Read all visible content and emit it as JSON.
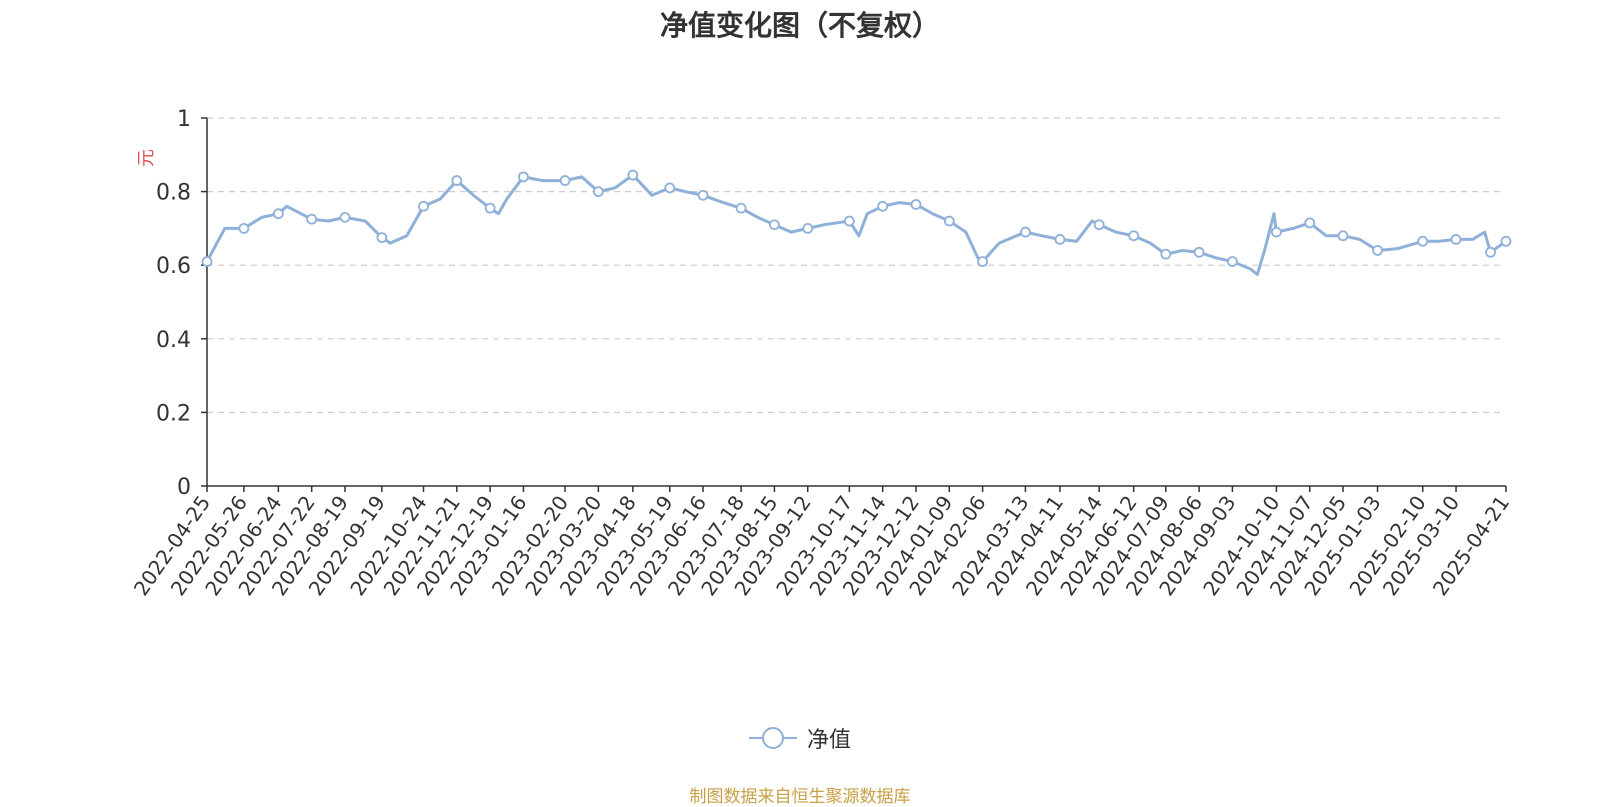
{
  "chart_data": {
    "type": "line",
    "title": "净值变化图（不复权）",
    "ylabel": "元",
    "xlabel": "",
    "ylim": [
      0,
      1
    ],
    "yticks": [
      "0",
      "0.2",
      "0.4",
      "0.6",
      "0.8",
      "1"
    ],
    "grid": true,
    "legend_position": "bottom",
    "x_ticks": [
      "2022-04-25",
      "2022-05-26",
      "2022-06-24",
      "2022-07-22",
      "2022-08-19",
      "2022-09-19",
      "2022-10-24",
      "2022-11-21",
      "2022-12-19",
      "2023-01-16",
      "2023-02-20",
      "2023-03-20",
      "2023-04-18",
      "2023-05-19",
      "2023-06-16",
      "2023-07-18",
      "2023-08-15",
      "2023-09-12",
      "2023-10-17",
      "2023-11-14",
      "2023-12-12",
      "2024-01-09",
      "2024-02-06",
      "2024-03-13",
      "2024-04-11",
      "2024-05-14",
      "2024-06-12",
      "2024-07-09",
      "2024-08-06",
      "2024-09-03",
      "2024-10-10",
      "2024-11-07",
      "2024-12-05",
      "2025-01-03",
      "2025-02-10",
      "2025-03-10",
      "2025-04-21"
    ],
    "series": [
      {
        "name": "净值",
        "color": "#8fb0d9",
        "x": [
          "2022-04-25",
          "2022-05-10",
          "2022-05-26",
          "2022-06-10",
          "2022-06-24",
          "2022-07-01",
          "2022-07-22",
          "2022-08-05",
          "2022-08-19",
          "2022-09-05",
          "2022-09-19",
          "2022-09-26",
          "2022-10-10",
          "2022-10-24",
          "2022-11-07",
          "2022-11-21",
          "2022-12-05",
          "2022-12-19",
          "2022-12-26",
          "2023-01-02",
          "2023-01-16",
          "2023-02-01",
          "2023-02-20",
          "2023-03-06",
          "2023-03-20",
          "2023-04-03",
          "2023-04-18",
          "2023-05-04",
          "2023-05-19",
          "2023-06-01",
          "2023-06-16",
          "2023-07-03",
          "2023-07-18",
          "2023-08-01",
          "2023-08-15",
          "2023-08-29",
          "2023-09-12",
          "2023-09-26",
          "2023-10-17",
          "2023-10-25",
          "2023-11-01",
          "2023-11-14",
          "2023-11-28",
          "2023-12-12",
          "2023-12-26",
          "2024-01-09",
          "2024-01-23",
          "2024-02-02",
          "2024-02-06",
          "2024-02-20",
          "2024-03-13",
          "2024-03-27",
          "2024-04-11",
          "2024-04-25",
          "2024-05-08",
          "2024-05-14",
          "2024-05-28",
          "2024-06-12",
          "2024-06-26",
          "2024-07-09",
          "2024-07-23",
          "2024-08-06",
          "2024-08-20",
          "2024-09-03",
          "2024-09-18",
          "2024-09-24",
          "2024-09-30",
          "2024-10-08",
          "2024-10-10",
          "2024-10-24",
          "2024-11-07",
          "2024-11-21",
          "2024-12-05",
          "2024-12-19",
          "2025-01-03",
          "2025-01-20",
          "2025-02-10",
          "2025-02-24",
          "2025-03-10",
          "2025-03-24",
          "2025-04-03",
          "2025-04-08",
          "2025-04-21"
        ],
        "values": [
          0.61,
          0.7,
          0.7,
          0.73,
          0.74,
          0.76,
          0.725,
          0.72,
          0.73,
          0.72,
          0.675,
          0.66,
          0.68,
          0.76,
          0.78,
          0.83,
          0.79,
          0.755,
          0.74,
          0.78,
          0.84,
          0.83,
          0.83,
          0.84,
          0.8,
          0.81,
          0.845,
          0.79,
          0.81,
          0.8,
          0.79,
          0.77,
          0.755,
          0.73,
          0.71,
          0.69,
          0.7,
          0.71,
          0.72,
          0.68,
          0.74,
          0.76,
          0.77,
          0.765,
          0.74,
          0.72,
          0.69,
          0.62,
          0.61,
          0.66,
          0.69,
          0.68,
          0.67,
          0.665,
          0.72,
          0.71,
          0.69,
          0.68,
          0.66,
          0.63,
          0.64,
          0.635,
          0.62,
          0.61,
          0.59,
          0.575,
          0.64,
          0.74,
          0.69,
          0.7,
          0.715,
          0.68,
          0.68,
          0.67,
          0.64,
          0.645,
          0.665,
          0.665,
          0.67,
          0.67,
          0.69,
          0.635,
          0.665
        ]
      }
    ],
    "markers": [
      "2022-04-25",
      "2022-05-26",
      "2022-06-24",
      "2022-07-22",
      "2022-08-19",
      "2022-09-19",
      "2022-10-24",
      "2022-11-21",
      "2022-12-19",
      "2023-01-16",
      "2023-02-20",
      "2023-03-20",
      "2023-04-18",
      "2023-05-19",
      "2023-06-16",
      "2023-07-18",
      "2023-08-15",
      "2023-09-12",
      "2023-10-17",
      "2023-11-14",
      "2023-12-12",
      "2024-01-09",
      "2024-02-06",
      "2024-03-13",
      "2024-04-11",
      "2024-05-14",
      "2024-06-12",
      "2024-07-09",
      "2024-08-06",
      "2024-09-03",
      "2024-10-10",
      "2024-11-07",
      "2024-12-05",
      "2025-01-03",
      "2025-02-10",
      "2025-03-10",
      "2025-04-08",
      "2025-04-21"
    ]
  },
  "legend_label": "净值",
  "source_text": "制图数据来自恒生聚源数据库",
  "colors": {
    "axis": "#333333",
    "grid": "#cccccc",
    "ylabel": "#e05050",
    "source": "#c8a047"
  }
}
